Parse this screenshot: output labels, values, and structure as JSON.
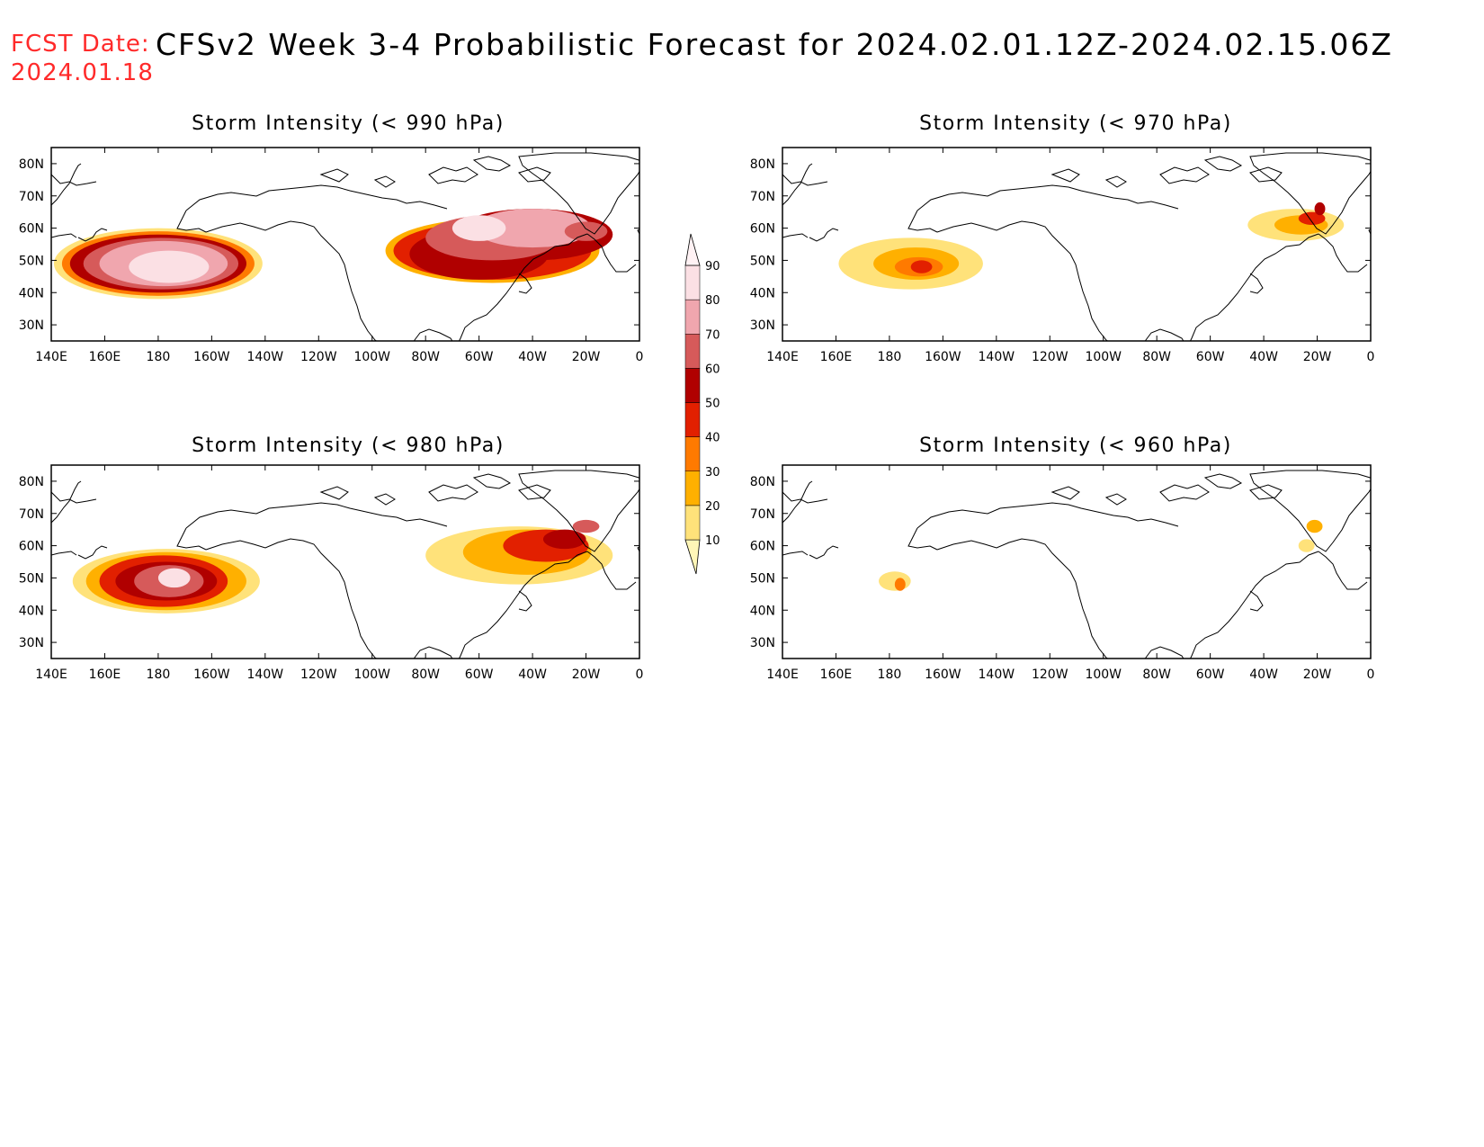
{
  "header": {
    "fcst_label": "FCST Date:",
    "fcst_date": "2024.01.18",
    "title": "CFSv2 Week 3-4 Probabilistic Forecast for 2024.02.01.12Z-2024.02.15.06Z"
  },
  "lat_ticks": [
    "80N",
    "70N",
    "60N",
    "50N",
    "40N",
    "30N"
  ],
  "lon_ticks": [
    "140E",
    "160E",
    "180",
    "160W",
    "140W",
    "120W",
    "100W",
    "80W",
    "60W",
    "40W",
    "20W",
    "0"
  ],
  "legend": {
    "levels": [
      "10",
      "20",
      "30",
      "40",
      "50",
      "60",
      "70",
      "80",
      "90"
    ],
    "colors": [
      "#fff6b8",
      "#ffe27a",
      "#ffb000",
      "#ff7a00",
      "#e22000",
      "#b00000",
      "#d65a5a",
      "#f0a6ae",
      "#fbe0e4",
      "#fff2f4"
    ]
  },
  "panels": [
    {
      "title": "Storm Intensity (< 990 hPa)",
      "blobs": [
        {
          "lon": 180,
          "lat": 49,
          "rlon": 39,
          "rlat": 11,
          "level": 1
        },
        {
          "lon": 180,
          "lat": 49,
          "rlon": 36,
          "rlat": 10,
          "level": 3
        },
        {
          "lon": 180,
          "lat": 49,
          "rlon": 33,
          "rlat": 9,
          "level": 5
        },
        {
          "lon": 181,
          "lat": 49,
          "rlon": 29,
          "rlat": 8,
          "level": 6
        },
        {
          "lon": 182,
          "lat": 49,
          "rlon": 24,
          "rlat": 7,
          "level": 7
        },
        {
          "lon": 184,
          "lat": 48,
          "rlon": 15,
          "rlat": 5,
          "level": 8
        },
        {
          "lon": 305,
          "lat": 53,
          "rlon": 40,
          "rlat": 10,
          "level": 2
        },
        {
          "lon": 305,
          "lat": 53,
          "rlon": 37,
          "rlat": 9,
          "level": 4
        },
        {
          "lon": 300,
          "lat": 52,
          "rlon": 26,
          "rlat": 8,
          "level": 5
        },
        {
          "lon": 320,
          "lat": 58,
          "rlon": 30,
          "rlat": 8,
          "level": 5
        },
        {
          "lon": 305,
          "lat": 57,
          "rlon": 25,
          "rlat": 7,
          "level": 6
        },
        {
          "lon": 320,
          "lat": 60,
          "rlon": 22,
          "rlat": 6,
          "level": 7
        },
        {
          "lon": 300,
          "lat": 60,
          "rlon": 10,
          "rlat": 4,
          "level": 8
        },
        {
          "lon": 340,
          "lat": 59,
          "rlon": 8,
          "rlat": 3,
          "level": 6
        }
      ]
    },
    {
      "title": "Storm Intensity (< 970 hPa)",
      "blobs": [
        {
          "lon": 188,
          "lat": 49,
          "rlon": 27,
          "rlat": 8,
          "level": 1
        },
        {
          "lon": 190,
          "lat": 49,
          "rlon": 16,
          "rlat": 5,
          "level": 2
        },
        {
          "lon": 191,
          "lat": 48,
          "rlon": 9,
          "rlat": 3,
          "level": 3
        },
        {
          "lon": 192,
          "lat": 48,
          "rlon": 4,
          "rlat": 2,
          "level": 4
        },
        {
          "lon": 332,
          "lat": 61,
          "rlon": 18,
          "rlat": 5,
          "level": 1
        },
        {
          "lon": 334,
          "lat": 61,
          "rlon": 10,
          "rlat": 3,
          "level": 2
        },
        {
          "lon": 338,
          "lat": 63,
          "rlon": 5,
          "rlat": 2,
          "level": 4
        },
        {
          "lon": 341,
          "lat": 66,
          "rlon": 2,
          "rlat": 2,
          "level": 5
        }
      ]
    },
    {
      "title": "Storm Intensity (< 980 hPa)",
      "blobs": [
        {
          "lon": 183,
          "lat": 49,
          "rlon": 35,
          "rlat": 10,
          "level": 1
        },
        {
          "lon": 183,
          "lat": 49,
          "rlon": 30,
          "rlat": 9,
          "level": 2
        },
        {
          "lon": 182,
          "lat": 49,
          "rlon": 24,
          "rlat": 8,
          "level": 4
        },
        {
          "lon": 183,
          "lat": 49,
          "rlon": 19,
          "rlat": 6,
          "level": 5
        },
        {
          "lon": 184,
          "lat": 49,
          "rlon": 13,
          "rlat": 5,
          "level": 6
        },
        {
          "lon": 186,
          "lat": 50,
          "rlon": 6,
          "rlat": 3,
          "level": 8
        },
        {
          "lon": 315,
          "lat": 57,
          "rlon": 35,
          "rlat": 9,
          "level": 1
        },
        {
          "lon": 318,
          "lat": 58,
          "rlon": 24,
          "rlat": 7,
          "level": 2
        },
        {
          "lon": 325,
          "lat": 60,
          "rlon": 16,
          "rlat": 5,
          "level": 4
        },
        {
          "lon": 332,
          "lat": 62,
          "rlon": 8,
          "rlat": 3,
          "level": 5
        },
        {
          "lon": 340,
          "lat": 66,
          "rlon": 5,
          "rlat": 2,
          "level": 6
        }
      ]
    },
    {
      "title": "Storm Intensity (< 960 hPa)",
      "blobs": [
        {
          "lon": 182,
          "lat": 49,
          "rlon": 6,
          "rlat": 3,
          "level": 1
        },
        {
          "lon": 184,
          "lat": 48,
          "rlon": 2,
          "rlat": 2,
          "level": 3
        },
        {
          "lon": 336,
          "lat": 60,
          "rlon": 3,
          "rlat": 2,
          "level": 1
        },
        {
          "lon": 339,
          "lat": 66,
          "rlon": 3,
          "rlat": 2,
          "level": 2
        }
      ]
    }
  ]
}
